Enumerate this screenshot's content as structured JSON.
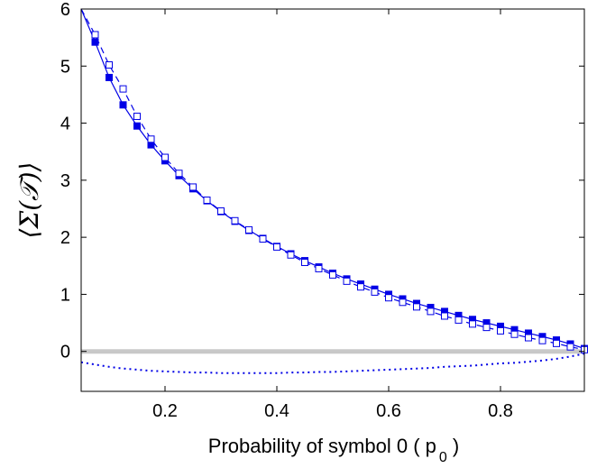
{
  "chart_data": {
    "type": "line",
    "xlabel": "Probability of symbol 0 ( p",
    "xlabel_subscript": "0",
    "xlabel_tail": " )",
    "ylabel": "⟨Σ(𝒯)⟩",
    "xlim": [
      0.05,
      0.95
    ],
    "ylim": [
      -0.7,
      6
    ],
    "xticks": [
      0.2,
      0.4,
      0.6,
      0.8
    ],
    "xtick_labels": [
      "0.2",
      "0.4",
      "0.6",
      "0.8"
    ],
    "yticks": [
      0,
      1,
      2,
      3,
      4,
      5,
      6
    ],
    "ytick_labels": [
      "0",
      "1",
      "2",
      "3",
      "4",
      "5",
      "6"
    ],
    "grid": false,
    "legend": "none",
    "reference_line": {
      "y": 0,
      "color": "#c8c8c8"
    },
    "x": [
      0.05,
      0.075,
      0.1,
      0.125,
      0.15,
      0.175,
      0.2,
      0.225,
      0.25,
      0.275,
      0.3,
      0.325,
      0.35,
      0.375,
      0.4,
      0.425,
      0.45,
      0.475,
      0.5,
      0.525,
      0.55,
      0.575,
      0.6,
      0.625,
      0.65,
      0.675,
      0.7,
      0.725,
      0.75,
      0.775,
      0.8,
      0.825,
      0.85,
      0.875,
      0.9,
      0.925,
      0.95
    ],
    "series": [
      {
        "style": "solid line with filled square markers",
        "color": "#0000e6",
        "values": [
          6.0,
          5.42,
          4.8,
          4.32,
          3.95,
          3.62,
          3.34,
          3.08,
          2.85,
          2.64,
          2.45,
          2.28,
          2.12,
          1.98,
          1.84,
          1.71,
          1.59,
          1.48,
          1.37,
          1.27,
          1.18,
          1.09,
          1.0,
          0.92,
          0.84,
          0.77,
          0.7,
          0.63,
          0.56,
          0.5,
          0.44,
          0.38,
          0.32,
          0.26,
          0.2,
          0.13,
          0.05
        ]
      },
      {
        "style": "dashed line with open square markers",
        "color": "#0000e6",
        "values": [
          6.0,
          5.55,
          5.02,
          4.6,
          4.12,
          3.72,
          3.4,
          3.12,
          2.88,
          2.65,
          2.46,
          2.29,
          2.13,
          1.97,
          1.83,
          1.69,
          1.56,
          1.45,
          1.34,
          1.23,
          1.13,
          1.04,
          0.94,
          0.86,
          0.78,
          0.7,
          0.62,
          0.55,
          0.48,
          0.42,
          0.36,
          0.3,
          0.24,
          0.19,
          0.14,
          0.08,
          0.03
        ]
      },
      {
        "style": "dotted line",
        "color": "#0000e6",
        "values": [
          -0.19,
          -0.23,
          -0.27,
          -0.3,
          -0.32,
          -0.34,
          -0.35,
          -0.36,
          -0.37,
          -0.37,
          -0.38,
          -0.38,
          -0.38,
          -0.38,
          -0.38,
          -0.37,
          -0.37,
          -0.36,
          -0.36,
          -0.35,
          -0.34,
          -0.33,
          -0.32,
          -0.31,
          -0.3,
          -0.29,
          -0.27,
          -0.26,
          -0.25,
          -0.23,
          -0.21,
          -0.2,
          -0.18,
          -0.16,
          -0.13,
          -0.09,
          -0.04
        ]
      }
    ]
  }
}
